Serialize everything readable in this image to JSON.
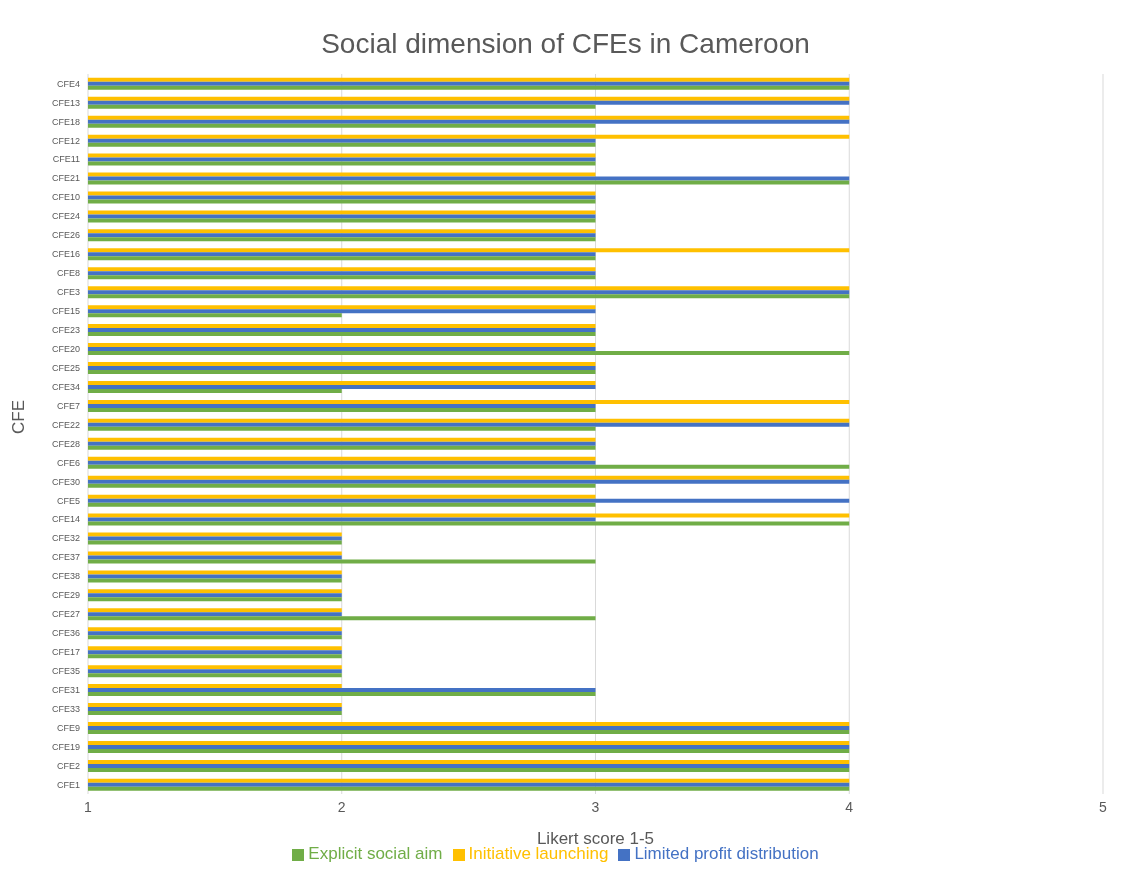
{
  "chart_data": {
    "type": "bar",
    "orientation": "horizontal",
    "title": "Social dimension of CFEs in Cameroon",
    "xlabel": "Likert score 1-5",
    "ylabel": "CFE",
    "categories": [
      "CFE4",
      "CFE13",
      "CFE18",
      "CFE12",
      "CFE11",
      "CFE21",
      "CFE10",
      "CFE24",
      "CFE26",
      "CFE16",
      "CFE8",
      "CFE3",
      "CFE15",
      "CFE23",
      "CFE20",
      "CFE25",
      "CFE34",
      "CFE7",
      "CFE22",
      "CFE28",
      "CFE6",
      "CFE30",
      "CFE5",
      "CFE14",
      "CFE32",
      "CFE37",
      "CFE38",
      "CFE29",
      "CFE27",
      "CFE36",
      "CFE17",
      "CFE35",
      "CFE31",
      "CFE33",
      "CFE9",
      "CFE19",
      "CFE2",
      "CFE1"
    ],
    "series": [
      {
        "name": "Initiative launching",
        "color": "#ffc000",
        "values": [
          4,
          4,
          4,
          4,
          3,
          3,
          3,
          3,
          3,
          4,
          3,
          4,
          3,
          3,
          3,
          3,
          3,
          4,
          4,
          3,
          3,
          4,
          3,
          4,
          2,
          2,
          2,
          2,
          2,
          2,
          2,
          2,
          2,
          2,
          4,
          4,
          4,
          4
        ]
      },
      {
        "name": "Limited profit distribution",
        "color": "#4472c4",
        "values": [
          4,
          4,
          4,
          3,
          3,
          4,
          3,
          3,
          3,
          3,
          3,
          4,
          3,
          3,
          3,
          3,
          3,
          3,
          4,
          3,
          3,
          4,
          4,
          3,
          2,
          2,
          2,
          2,
          2,
          2,
          2,
          2,
          3,
          2,
          4,
          4,
          4,
          4
        ]
      },
      {
        "name": "Explicit social aim",
        "color": "#70ad47",
        "values": [
          4,
          3,
          3,
          3,
          3,
          4,
          3,
          3,
          3,
          3,
          3,
          4,
          2,
          3,
          4,
          3,
          2,
          3,
          3,
          3,
          4,
          3,
          3,
          4,
          2,
          3,
          2,
          2,
          3,
          2,
          2,
          2,
          3,
          2,
          4,
          4,
          4,
          4
        ]
      }
    ],
    "xlim": [
      1,
      5
    ],
    "xticks": [
      1,
      2,
      3,
      4,
      5
    ],
    "grid": "x",
    "legend": "bottom"
  }
}
